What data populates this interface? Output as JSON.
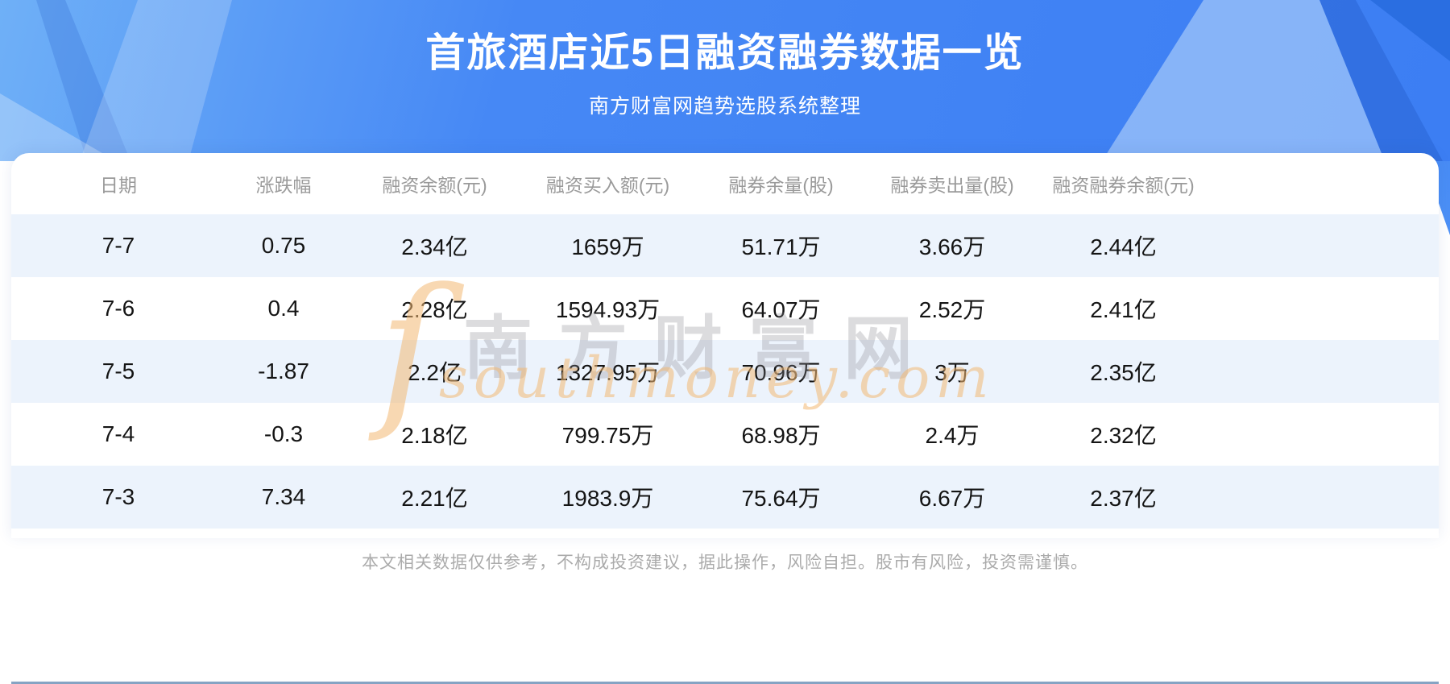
{
  "banner": {
    "title": "首旅酒店近5日融资融券数据一览",
    "subtitle": "南方财富网趋势选股系统整理"
  },
  "chart_data": {
    "type": "table",
    "title": "首旅酒店近5日融资融券数据一览",
    "subtitle": "南方财富网趋势选股系统整理",
    "headers": [
      "日期",
      "涨跌幅",
      "融资余额(元)",
      "融资买入额(元)",
      "融券余量(股)",
      "融券卖出量(股)",
      "融资融券余额(元)"
    ],
    "rows": [
      [
        "7-7",
        "0.75",
        "2.34亿",
        "1659万",
        "51.71万",
        "3.66万",
        "2.44亿"
      ],
      [
        "7-6",
        "0.4",
        "2.28亿",
        "1594.93万",
        "64.07万",
        "2.52万",
        "2.41亿"
      ],
      [
        "7-5",
        "-1.87",
        "2.2亿",
        "1327.95万",
        "70.96万",
        "3万",
        "2.35亿"
      ],
      [
        "7-4",
        "-0.3",
        "2.18亿",
        "799.75万",
        "68.98万",
        "2.4万",
        "2.32亿"
      ],
      [
        "7-3",
        "7.34",
        "2.21亿",
        "1983.9万",
        "75.64万",
        "6.67万",
        "2.37亿"
      ]
    ]
  },
  "watermark": {
    "cn": "南方财富网",
    "en": "southmoney.com",
    "flourish": "ſ"
  },
  "footer": {
    "disclaimer": "本文相关数据仅供参考，不构成投资建议，据此操作，风险自担。股市有风险，投资需谨慎。"
  },
  "colors": {
    "banner_blue": "#4688f5",
    "row_alt": "#ecf3fc",
    "table_rule": "#86a3c3",
    "header_text": "#9a9a9a",
    "cell_text": "#141414",
    "watermark_orange": "#f3b873"
  }
}
